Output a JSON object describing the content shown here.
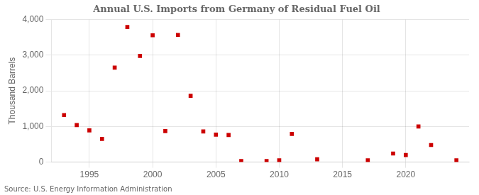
{
  "chart_data": {
    "type": "scatter",
    "title": "Annual U.S. Imports from Germany of Residual Fuel Oil",
    "ylabel": "Thousand Barrels",
    "annotations": [
      "Source: U.S. Energy Information Administration"
    ],
    "x": [
      1993,
      1994,
      1995,
      1996,
      1997,
      1998,
      1999,
      2000,
      2001,
      2002,
      2003,
      2004,
      2005,
      2006,
      2007,
      2009,
      2010,
      2011,
      2013,
      2017,
      2019,
      2020,
      2021,
      2022,
      2024
    ],
    "values": [
      1320,
      1040,
      890,
      650,
      2650,
      3790,
      2980,
      3560,
      870,
      3570,
      1860,
      860,
      770,
      760,
      30,
      30,
      50,
      790,
      80,
      50,
      240,
      200,
      1000,
      480,
      50
    ],
    "color": "#cc0000",
    "marker": "square",
    "xlim": [
      1992,
      2025
    ],
    "xticks": [
      1995,
      2000,
      2005,
      2010,
      2015,
      2020
    ],
    "ylim": [
      0,
      4000
    ],
    "yticks": [
      0,
      {
        "value": 1000,
        "label": "1,000"
      },
      {
        "value": 2000,
        "label": "2,000"
      },
      {
        "value": 3000,
        "label": "3,000"
      },
      {
        "value": 4000,
        "label": "4,000"
      }
    ],
    "grid": true
  }
}
